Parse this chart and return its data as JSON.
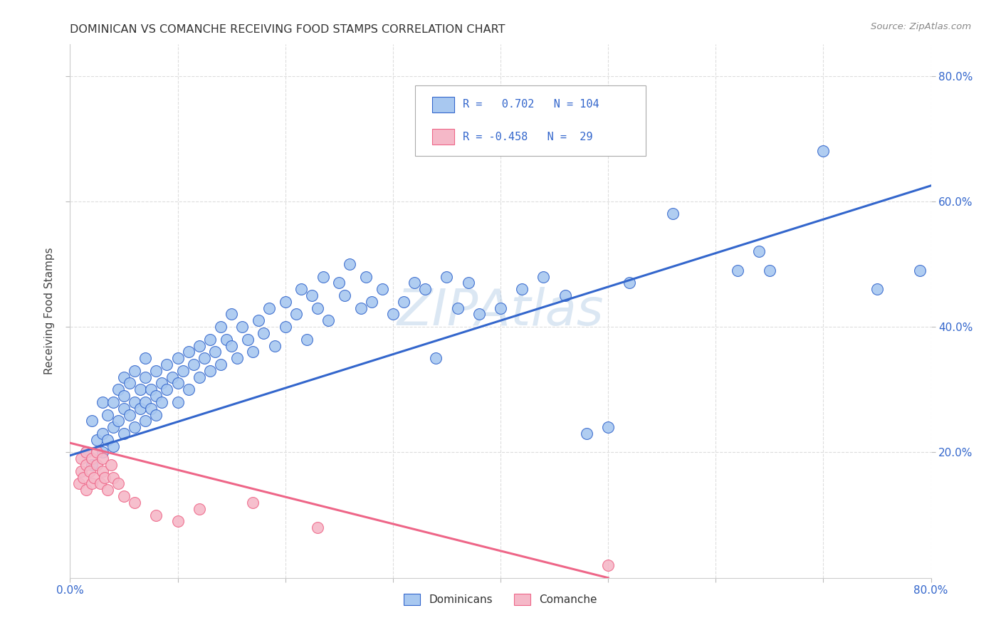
{
  "title": "DOMINICAN VS COMANCHE RECEIVING FOOD STAMPS CORRELATION CHART",
  "source": "Source: ZipAtlas.com",
  "ylabel": "Receiving Food Stamps",
  "watermark": "ZIPAtlas",
  "xlim": [
    0.0,
    0.8
  ],
  "ylim": [
    0.0,
    0.85
  ],
  "color_dominican": "#A8C8F0",
  "color_comanche": "#F5B8C8",
  "color_line_dominican": "#3366CC",
  "color_line_comanche": "#EE6688",
  "dom_line_x0": 0.0,
  "dom_line_y0": 0.195,
  "dom_line_x1": 0.8,
  "dom_line_y1": 0.625,
  "com_line_x0": 0.0,
  "com_line_y0": 0.215,
  "com_line_x1": 0.5,
  "com_line_y1": 0.0,
  "dom_pts_x": [
    0.015,
    0.02,
    0.02,
    0.025,
    0.03,
    0.03,
    0.03,
    0.035,
    0.035,
    0.04,
    0.04,
    0.04,
    0.045,
    0.045,
    0.05,
    0.05,
    0.05,
    0.05,
    0.055,
    0.055,
    0.06,
    0.06,
    0.06,
    0.065,
    0.065,
    0.07,
    0.07,
    0.07,
    0.07,
    0.075,
    0.075,
    0.08,
    0.08,
    0.08,
    0.085,
    0.085,
    0.09,
    0.09,
    0.095,
    0.1,
    0.1,
    0.1,
    0.105,
    0.11,
    0.11,
    0.115,
    0.12,
    0.12,
    0.125,
    0.13,
    0.13,
    0.135,
    0.14,
    0.14,
    0.145,
    0.15,
    0.15,
    0.155,
    0.16,
    0.165,
    0.17,
    0.175,
    0.18,
    0.185,
    0.19,
    0.2,
    0.2,
    0.21,
    0.215,
    0.22,
    0.225,
    0.23,
    0.235,
    0.24,
    0.25,
    0.255,
    0.26,
    0.27,
    0.275,
    0.28,
    0.29,
    0.3,
    0.31,
    0.32,
    0.33,
    0.34,
    0.35,
    0.36,
    0.37,
    0.38,
    0.4,
    0.42,
    0.44,
    0.46,
    0.48,
    0.5,
    0.52,
    0.56,
    0.62,
    0.64,
    0.65,
    0.7,
    0.75,
    0.79
  ],
  "dom_pts_y": [
    0.2,
    0.25,
    0.18,
    0.22,
    0.28,
    0.23,
    0.2,
    0.26,
    0.22,
    0.28,
    0.24,
    0.21,
    0.3,
    0.25,
    0.32,
    0.27,
    0.23,
    0.29,
    0.31,
    0.26,
    0.28,
    0.33,
    0.24,
    0.3,
    0.27,
    0.32,
    0.28,
    0.35,
    0.25,
    0.3,
    0.27,
    0.33,
    0.29,
    0.26,
    0.31,
    0.28,
    0.34,
    0.3,
    0.32,
    0.35,
    0.28,
    0.31,
    0.33,
    0.36,
    0.3,
    0.34,
    0.32,
    0.37,
    0.35,
    0.38,
    0.33,
    0.36,
    0.4,
    0.34,
    0.38,
    0.37,
    0.42,
    0.35,
    0.4,
    0.38,
    0.36,
    0.41,
    0.39,
    0.43,
    0.37,
    0.44,
    0.4,
    0.42,
    0.46,
    0.38,
    0.45,
    0.43,
    0.48,
    0.41,
    0.47,
    0.45,
    0.5,
    0.43,
    0.48,
    0.44,
    0.46,
    0.42,
    0.44,
    0.47,
    0.46,
    0.35,
    0.48,
    0.43,
    0.47,
    0.42,
    0.43,
    0.46,
    0.48,
    0.45,
    0.23,
    0.24,
    0.47,
    0.58,
    0.49,
    0.52,
    0.49,
    0.68,
    0.46,
    0.49
  ],
  "com_pts_x": [
    0.008,
    0.01,
    0.01,
    0.012,
    0.015,
    0.015,
    0.015,
    0.018,
    0.02,
    0.02,
    0.022,
    0.025,
    0.025,
    0.028,
    0.03,
    0.03,
    0.032,
    0.035,
    0.038,
    0.04,
    0.045,
    0.05,
    0.06,
    0.08,
    0.1,
    0.12,
    0.17,
    0.23,
    0.5
  ],
  "com_pts_y": [
    0.15,
    0.17,
    0.19,
    0.16,
    0.18,
    0.2,
    0.14,
    0.17,
    0.19,
    0.15,
    0.16,
    0.18,
    0.2,
    0.15,
    0.17,
    0.19,
    0.16,
    0.14,
    0.18,
    0.16,
    0.15,
    0.13,
    0.12,
    0.1,
    0.09,
    0.11,
    0.12,
    0.08,
    0.02
  ]
}
